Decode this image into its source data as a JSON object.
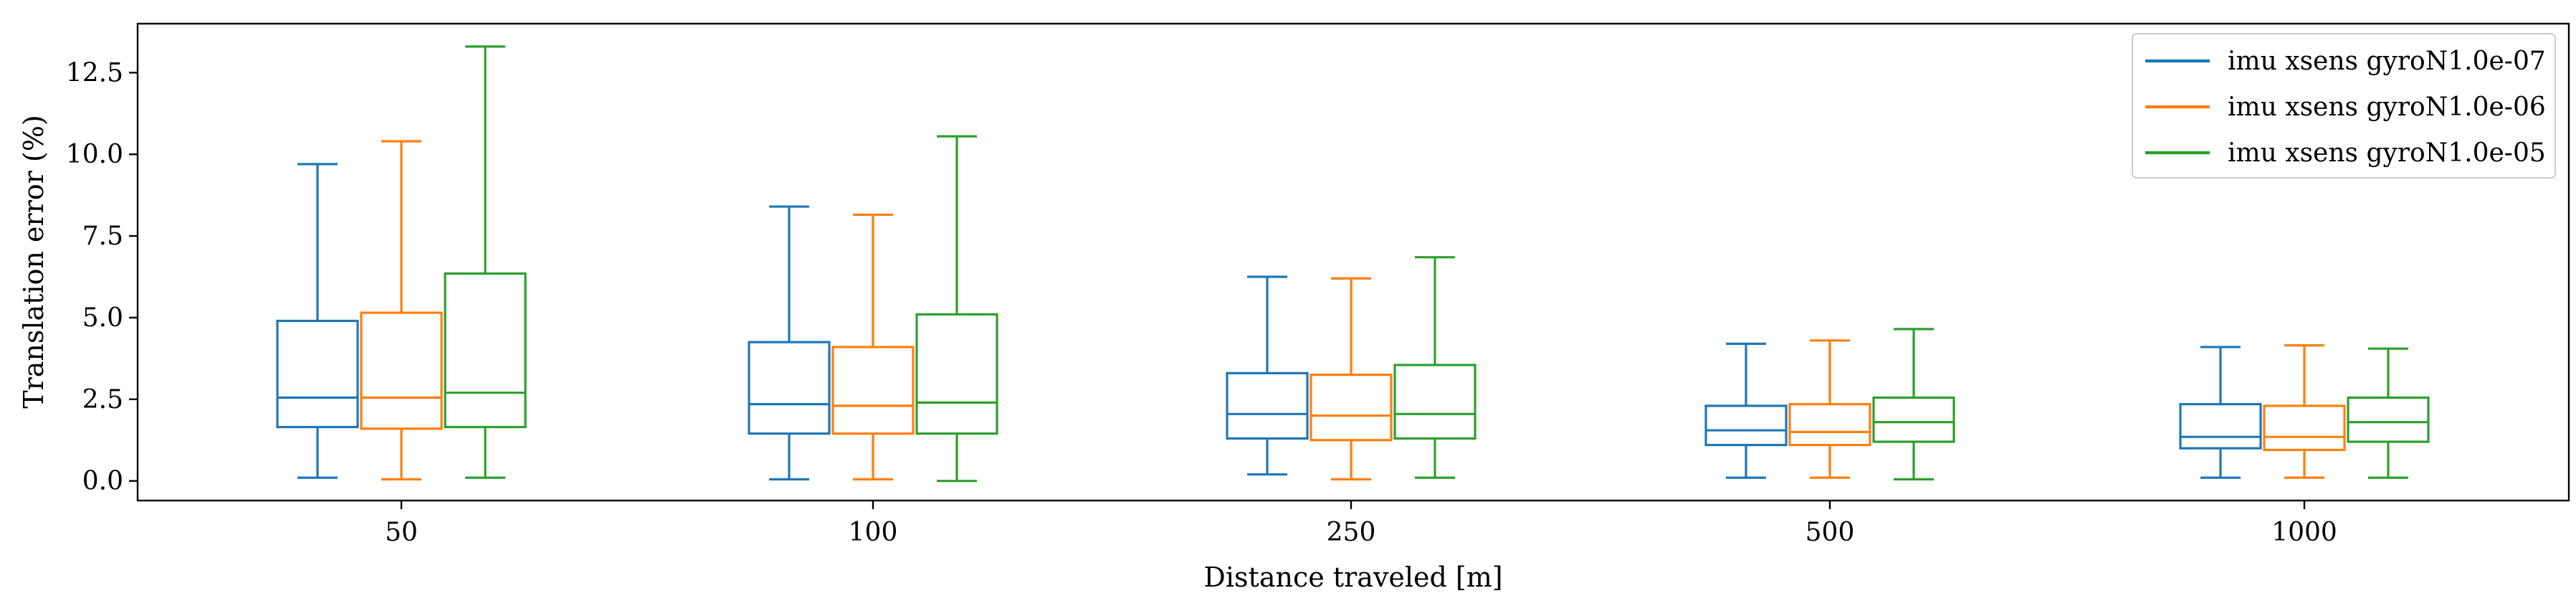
{
  "chart_data": {
    "type": "boxplot",
    "title": "",
    "xlabel": "Distance traveled [m]",
    "ylabel": "Translation error (%)",
    "ylim": [
      -0.6,
      14.0
    ],
    "yticks": [
      "0.0",
      "2.5",
      "5.0",
      "7.5",
      "10.0",
      "12.5"
    ],
    "categories": [
      "50",
      "100",
      "250",
      "500",
      "1000"
    ],
    "grid": false,
    "legend_position": "top-right",
    "series": [
      {
        "name": "imu xsens gyroN1.0e-07",
        "color": "#1f77b4",
        "boxes": [
          {
            "whisker_low": 0.1,
            "q1": 1.65,
            "median": 2.55,
            "q3": 4.9,
            "whisker_high": 9.7
          },
          {
            "whisker_low": 0.05,
            "q1": 1.45,
            "median": 2.35,
            "q3": 4.25,
            "whisker_high": 8.4
          },
          {
            "whisker_low": 0.2,
            "q1": 1.3,
            "median": 2.05,
            "q3": 3.3,
            "whisker_high": 6.25
          },
          {
            "whisker_low": 0.1,
            "q1": 1.1,
            "median": 1.55,
            "q3": 2.3,
            "whisker_high": 4.2
          },
          {
            "whisker_low": 0.1,
            "q1": 1.0,
            "median": 1.35,
            "q3": 2.35,
            "whisker_high": 4.1
          }
        ]
      },
      {
        "name": "imu xsens gyroN1.0e-06",
        "color": "#ff7f0e",
        "boxes": [
          {
            "whisker_low": 0.05,
            "q1": 1.6,
            "median": 2.55,
            "q3": 5.15,
            "whisker_high": 10.4
          },
          {
            "whisker_low": 0.05,
            "q1": 1.45,
            "median": 2.3,
            "q3": 4.1,
            "whisker_high": 8.15
          },
          {
            "whisker_low": 0.05,
            "q1": 1.25,
            "median": 2.0,
            "q3": 3.25,
            "whisker_high": 6.2
          },
          {
            "whisker_low": 0.1,
            "q1": 1.1,
            "median": 1.5,
            "q3": 2.35,
            "whisker_high": 4.3
          },
          {
            "whisker_low": 0.1,
            "q1": 0.95,
            "median": 1.35,
            "q3": 2.3,
            "whisker_high": 4.15
          }
        ]
      },
      {
        "name": "imu xsens gyroN1.0e-05",
        "color": "#2ca02c",
        "boxes": [
          {
            "whisker_low": 0.1,
            "q1": 1.65,
            "median": 2.7,
            "q3": 6.35,
            "whisker_high": 13.3
          },
          {
            "whisker_low": 0.0,
            "q1": 1.45,
            "median": 2.4,
            "q3": 5.1,
            "whisker_high": 10.55
          },
          {
            "whisker_low": 0.1,
            "q1": 1.3,
            "median": 2.05,
            "q3": 3.55,
            "whisker_high": 6.85
          },
          {
            "whisker_low": 0.05,
            "q1": 1.2,
            "median": 1.8,
            "q3": 2.55,
            "whisker_high": 4.65
          },
          {
            "whisker_low": 0.1,
            "q1": 1.2,
            "median": 1.8,
            "q3": 2.55,
            "whisker_high": 4.05
          }
        ]
      }
    ]
  }
}
